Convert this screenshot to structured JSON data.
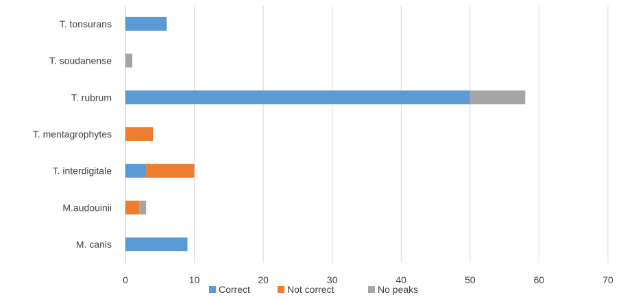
{
  "chart_data": {
    "type": "bar",
    "orientation": "horizontal",
    "stacked": true,
    "categories": [
      "T. tonsurans",
      "T. soudanense",
      "T. rubrum",
      "T. mentagrophytes",
      "T. interdigitale",
      "M.audouinii",
      "M. canis"
    ],
    "series": [
      {
        "name": "Correct",
        "color": "#5b9bd5",
        "values": [
          6,
          0,
          50,
          0,
          3,
          0,
          9
        ]
      },
      {
        "name": "Not correct",
        "color": "#ed7d31",
        "values": [
          0,
          0,
          0,
          4,
          7,
          2,
          0
        ]
      },
      {
        "name": "No peaks",
        "color": "#a5a5a5",
        "values": [
          0,
          1,
          8,
          0,
          0,
          1,
          0
        ]
      }
    ],
    "xlim": [
      0,
      70
    ],
    "xticks": [
      "0",
      "10",
      "20",
      "30",
      "40",
      "50",
      "60",
      "70"
    ],
    "grid": "vertical",
    "legend": "bottom"
  }
}
